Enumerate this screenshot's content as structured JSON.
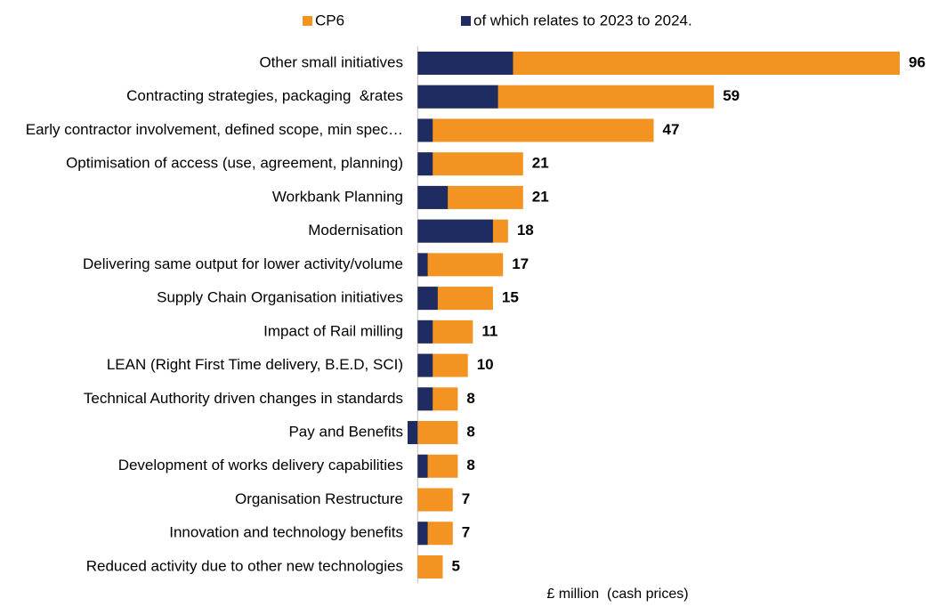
{
  "chart_data": {
    "type": "bar",
    "orientation": "horizontal",
    "overlap": true,
    "x_label": "£ million  (cash prices)",
    "categories": [
      "Other small initiatives",
      "Contracting strategies, packaging  &rates",
      "Early contractor involvement, defined scope, min spec…",
      "Optimisation of access (use, agreement, planning)",
      "Workbank Planning",
      "Modernisation",
      "Delivering same output for lower activity/volume",
      "Supply Chain Organisation initiatives",
      "Impact of Rail milling",
      "LEAN (Right First Time delivery, B.E.D, SCI)",
      "Technical Authority driven changes in standards",
      "Pay and Benefits",
      "Development of works delivery capabilities",
      "Organisation Restructure",
      "Innovation and technology benefits",
      "Reduced activity due to other new technologies"
    ],
    "series": [
      {
        "name": "CP6",
        "color": "#f39321",
        "values": [
          96,
          59,
          47,
          21,
          21,
          18,
          17,
          15,
          11,
          10,
          8,
          8,
          8,
          7,
          7,
          5
        ]
      },
      {
        "name": "of which relates to 2023 to 2024.",
        "color": "#1f2c61",
        "values": [
          19,
          16,
          3,
          3,
          6,
          15,
          2,
          4,
          3,
          3,
          3,
          -2,
          2,
          0,
          2,
          0
        ]
      }
    ],
    "xlim": [
      -2,
      96
    ]
  }
}
